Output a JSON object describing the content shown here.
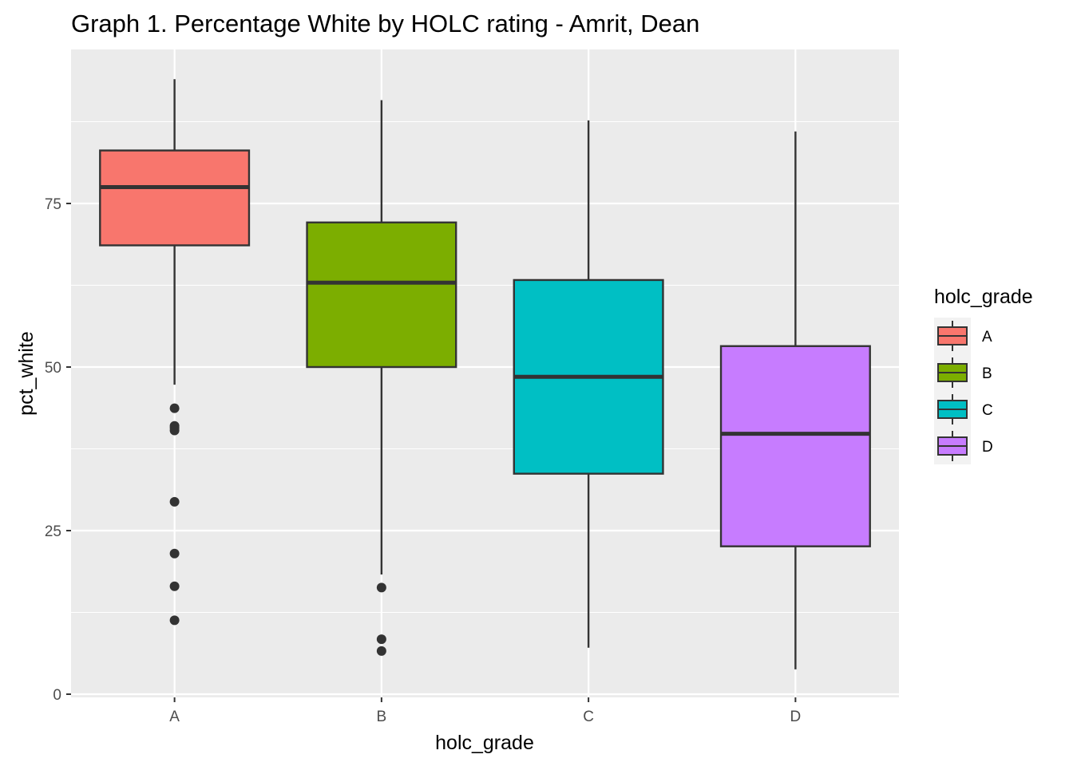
{
  "chart_data": {
    "type": "boxplot",
    "title": "Graph 1. Percentage White by HOLC rating - Amrit, Dean",
    "xlabel": "holc_grade",
    "ylabel": "pct_white",
    "categories": [
      "A",
      "B",
      "C",
      "D"
    ],
    "ylim": [
      0,
      98
    ],
    "yticks": [
      0,
      25,
      50,
      75
    ],
    "grid": true,
    "legend": {
      "title": "holc_grade",
      "position": "right",
      "entries": [
        "A",
        "B",
        "C",
        "D"
      ]
    },
    "colors": {
      "A": "#F8766D",
      "B": "#7CAE00",
      "C": "#00BFC4",
      "D": "#C77CFF",
      "panel": "#EBEBEB",
      "grid": "#FFFFFF",
      "box_outline": "#333333"
    },
    "boxes": [
      {
        "category": "A",
        "whisker_low": 47.3,
        "q1": 68.6,
        "median": 77.5,
        "q3": 83.1,
        "whisker_high": 94.0,
        "outliers": [
          43.7,
          41.0,
          40.7,
          40.3,
          29.4,
          21.5,
          16.5,
          11.3
        ]
      },
      {
        "category": "B",
        "whisker_low": 18.3,
        "q1": 50.0,
        "median": 62.9,
        "q3": 72.1,
        "whisker_high": 90.8,
        "outliers": [
          16.3,
          8.4,
          6.6
        ]
      },
      {
        "category": "C",
        "whisker_low": 7.1,
        "q1": 33.7,
        "median": 48.5,
        "q3": 63.3,
        "whisker_high": 87.7,
        "outliers": []
      },
      {
        "category": "D",
        "whisker_low": 3.8,
        "q1": 22.6,
        "median": 39.8,
        "q3": 53.2,
        "whisker_high": 86.0,
        "outliers": []
      }
    ]
  }
}
